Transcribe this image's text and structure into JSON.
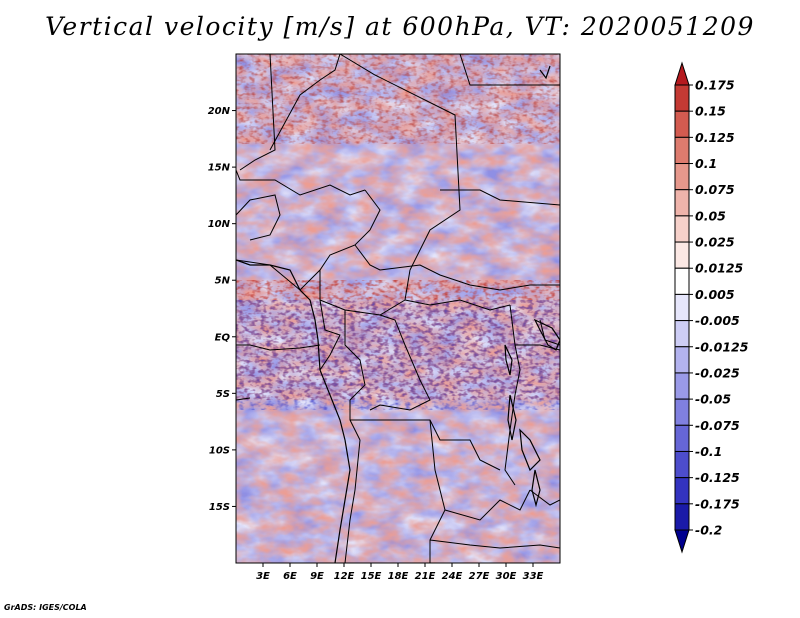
{
  "title": "Vertical velocity [m/s] at 600hPa, VT: 2020051209",
  "credit": "GrADS: IGES/COLA",
  "map": {
    "lon_range": [
      0,
      36
    ],
    "lat_range": [
      -20,
      25
    ],
    "lat_ticks": [
      "20N",
      "15N",
      "10N",
      "5N",
      "EQ",
      "5S",
      "10S",
      "15S"
    ],
    "lon_ticks": [
      "3E",
      "6E",
      "9E",
      "12E",
      "15E",
      "18E",
      "21E",
      "24E",
      "27E",
      "30E",
      "33E"
    ]
  },
  "colorbar": {
    "labels": [
      "0.175",
      "0.15",
      "0.125",
      "0.1",
      "0.075",
      "0.05",
      "0.025",
      "0.0125",
      "0.005",
      "-0.005",
      "-0.0125",
      "-0.025",
      "-0.05",
      "-0.075",
      "-0.1",
      "-0.125",
      "-0.175",
      "-0.2"
    ],
    "colors": [
      "#b51a1f",
      "#c43a34",
      "#d35b50",
      "#dd7b6e",
      "#e6988c",
      "#efb4ab",
      "#f6d1ca",
      "#fbe8e4",
      "#ffffff",
      "#e6e6fb",
      "#cdcdf5",
      "#b3b3ef",
      "#9a9ae8",
      "#8080e0",
      "#6666d6",
      "#4d4dcc",
      "#3333c0",
      "#1a1aa8",
      "#00008f"
    ]
  }
}
